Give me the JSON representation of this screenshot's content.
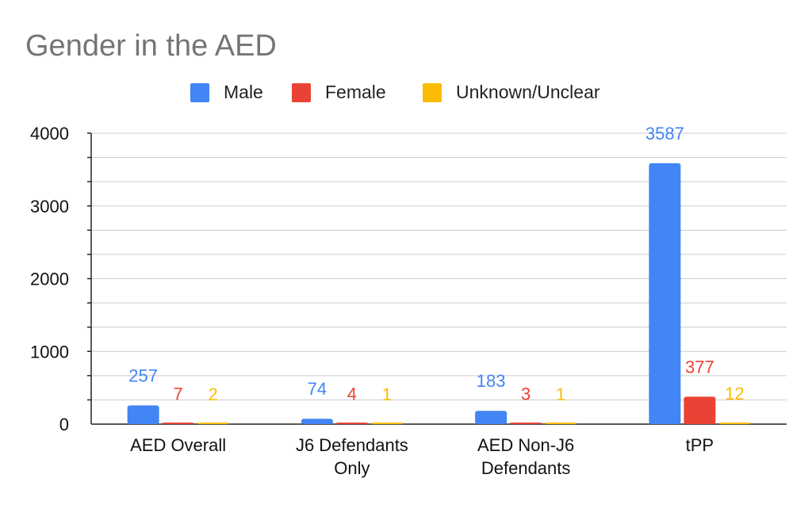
{
  "chart_data": {
    "type": "bar",
    "title": "Gender in the AED",
    "categories": [
      [
        "AED Overall"
      ],
      [
        "J6 Defendants",
        "Only"
      ],
      [
        "AED Non-J6",
        "Defendants"
      ],
      [
        "tPP"
      ]
    ],
    "series": [
      {
        "name": "Male",
        "color": "#4285f4",
        "values": [
          257,
          74,
          183,
          3587
        ]
      },
      {
        "name": "Female",
        "color": "#ea4335",
        "values": [
          7,
          4,
          3,
          377
        ]
      },
      {
        "name": "Unknown/Unclear",
        "color": "#fbbc04",
        "values": [
          2,
          1,
          1,
          12
        ]
      }
    ],
    "yticks": [
      0,
      1000,
      2000,
      3000,
      4000
    ],
    "ylim": [
      0,
      4000
    ],
    "xlabel": "",
    "ylabel": "",
    "legend_position": "top",
    "grid": true,
    "data_labels": true
  }
}
